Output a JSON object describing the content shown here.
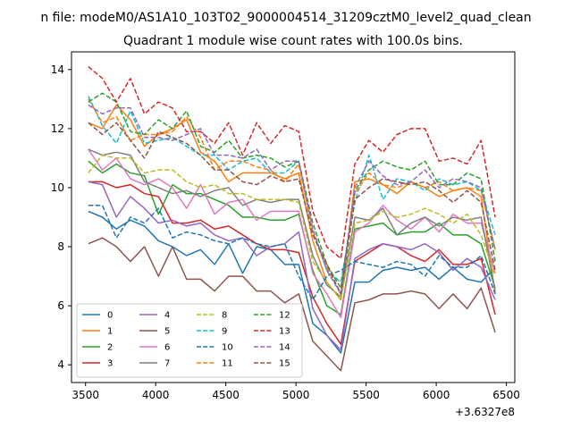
{
  "chart_data": {
    "type": "line",
    "suptitle": "n file: modeM0/AS1A10_103T02_9000004514_31209cztM0_level2_quad_clean",
    "title": "Quadrant 1 module wise count rates with 100.0s bins.",
    "xlabel": "",
    "ylabel": "",
    "x_offset_label": "+3.6327e8",
    "xlim": [
      3400,
      6560
    ],
    "ylim": [
      3.4,
      14.6
    ],
    "xticks": [
      3500,
      4000,
      4500,
      5000,
      5500,
      6000,
      6500
    ],
    "yticks": [
      4,
      6,
      8,
      10,
      12,
      14
    ],
    "x": [
      3520,
      3620,
      3720,
      3820,
      3920,
      4020,
      4120,
      4220,
      4320,
      4420,
      4520,
      4620,
      4720,
      4820,
      4920,
      5020,
      5120,
      5220,
      5320,
      5420,
      5520,
      5620,
      5720,
      5820,
      5920,
      6020,
      6120,
      6220,
      6320,
      6420
    ],
    "grid": false,
    "legend_position": "lower-left",
    "series": [
      {
        "name": "0",
        "color": "#1f77b4",
        "dash": "solid",
        "values": [
          9.2,
          9.0,
          8.6,
          8.9,
          8.7,
          8.2,
          8.0,
          7.7,
          7.9,
          7.4,
          8.1,
          7.1,
          8.0,
          7.9,
          7.4,
          7.4,
          5.4,
          5.0,
          4.4,
          6.8,
          6.8,
          7.2,
          7.3,
          7.2,
          7.3,
          6.9,
          7.3,
          6.9,
          6.8,
          7.3
        ]
      },
      {
        "name": "1",
        "color": "#ff7f0e",
        "dash": "solid",
        "values": [
          12.2,
          12.0,
          12.8,
          12.3,
          11.4,
          11.8,
          12.0,
          12.3,
          11.2,
          10.9,
          10.2,
          10.5,
          10.5,
          10.5,
          10.3,
          10.5,
          8.2,
          6.8,
          6.2,
          10.2,
          10.3,
          10.1,
          9.8,
          10.2,
          10.0,
          9.7,
          9.9,
          10.0,
          9.7,
          6.4
        ]
      },
      {
        "name": "2",
        "color": "#2ca02c",
        "dash": "solid",
        "values": [
          10.9,
          10.5,
          10.8,
          10.5,
          10.4,
          9.1,
          10.1,
          9.8,
          9.8,
          9.6,
          9.4,
          9.0,
          9.0,
          8.9,
          8.9,
          9.1,
          7.2,
          6.0,
          5.7,
          8.6,
          8.7,
          8.8,
          8.4,
          8.5,
          8.5,
          8.8,
          8.4,
          8.4,
          8.1,
          6.6
        ]
      },
      {
        "name": "3",
        "color": "#d62728",
        "dash": "solid",
        "values": [
          10.2,
          10.2,
          10.0,
          10.1,
          9.8,
          9.7,
          8.8,
          8.8,
          8.9,
          8.6,
          8.7,
          8.4,
          8.1,
          7.9,
          7.9,
          7.8,
          6.3,
          5.4,
          4.7,
          7.5,
          7.8,
          8.1,
          8.0,
          7.7,
          7.5,
          7.9,
          7.4,
          7.4,
          7.6,
          5.7
        ]
      },
      {
        "name": "4",
        "color": "#9467bd",
        "dash": "solid",
        "values": [
          10.2,
          10.1,
          9.0,
          9.7,
          9.3,
          8.8,
          8.9,
          8.7,
          8.8,
          8.4,
          8.2,
          8.3,
          7.7,
          8.0,
          8.1,
          8.5,
          5.9,
          5.0,
          4.5,
          7.6,
          7.9,
          8.1,
          8.0,
          7.9,
          8.1,
          7.8,
          7.2,
          7.6,
          7.3,
          6.2
        ]
      },
      {
        "name": "5",
        "color": "#8c564b",
        "dash": "solid",
        "values": [
          8.1,
          8.3,
          8.0,
          7.5,
          8.0,
          7.0,
          8.0,
          6.9,
          6.9,
          6.5,
          7.0,
          7.0,
          6.5,
          6.5,
          6.1,
          6.4,
          4.8,
          4.3,
          3.8,
          6.1,
          6.2,
          6.4,
          6.4,
          6.5,
          6.4,
          5.9,
          6.4,
          5.9,
          6.6,
          5.1
        ]
      },
      {
        "name": "6",
        "color": "#e377c2",
        "dash": "solid",
        "values": [
          11.3,
          10.6,
          11.0,
          10.3,
          10.1,
          10.3,
          10.0,
          9.3,
          10.1,
          9.1,
          9.5,
          9.6,
          8.9,
          9.2,
          9.2,
          9.2,
          7.1,
          6.4,
          5.6,
          8.5,
          8.8,
          9.4,
          8.9,
          8.6,
          9.0,
          8.5,
          9.1,
          8.8,
          8.8,
          7.1
        ]
      },
      {
        "name": "7",
        "color": "#7f7f7f",
        "dash": "solid",
        "values": [
          11.3,
          11.1,
          11.2,
          11.1,
          10.2,
          10.0,
          9.8,
          9.9,
          9.7,
          9.9,
          10.0,
          9.4,
          9.6,
          9.5,
          9.6,
          9.6,
          7.7,
          6.7,
          6.3,
          9.0,
          8.9,
          9.3,
          8.4,
          8.8,
          9.0,
          8.7,
          9.0,
          8.9,
          9.0,
          6.5
        ]
      },
      {
        "name": "8",
        "color": "#bcbd22",
        "dash": "dashed",
        "values": [
          10.5,
          11.1,
          11.0,
          11.0,
          10.5,
          10.6,
          10.6,
          10.2,
          10.0,
          10.1,
          9.8,
          9.8,
          9.6,
          9.6,
          9.6,
          9.5,
          7.5,
          6.8,
          6.2,
          8.8,
          8.9,
          9.2,
          9.0,
          9.1,
          9.3,
          9.1,
          8.8,
          9.1,
          8.4,
          7.0
        ]
      },
      {
        "name": "9",
        "color": "#17becf",
        "dash": "dashed",
        "values": [
          13.1,
          12.1,
          11.5,
          12.6,
          11.5,
          11.6,
          11.7,
          11.4,
          11.1,
          11.1,
          10.6,
          10.9,
          11.0,
          10.5,
          10.5,
          10.9,
          8.5,
          7.2,
          6.8,
          9.5,
          11.1,
          9.6,
          10.3,
          10.2,
          9.9,
          10.3,
          10.1,
          10.2,
          9.9,
          8.4
        ]
      },
      {
        "name": "10",
        "color": "#1f77b4",
        "dash": "dashed",
        "values": [
          9.4,
          9.4,
          8.3,
          9.0,
          8.8,
          9.3,
          8.3,
          8.5,
          8.4,
          8.2,
          8.1,
          8.3,
          8.1,
          8.0,
          8.1,
          7.0,
          6.2,
          7.0,
          7.2,
          7.5,
          7.4,
          7.3,
          7.5,
          7.4,
          7.0,
          7.7,
          7.3,
          7.3,
          7.7,
          6.4
        ]
      },
      {
        "name": "11",
        "color": "#ff7f0e",
        "dash": "dashed",
        "values": [
          13.0,
          12.2,
          12.4,
          11.6,
          11.8,
          11.8,
          11.9,
          12.4,
          11.7,
          10.6,
          10.9,
          10.9,
          10.7,
          10.6,
          10.2,
          10.8,
          8.5,
          7.3,
          6.4,
          9.8,
          10.5,
          10.1,
          10.0,
          10.2,
          10.0,
          10.2,
          9.9,
          10.0,
          9.9,
          7.9
        ]
      },
      {
        "name": "12",
        "color": "#2ca02c",
        "dash": "dashed",
        "values": [
          12.9,
          13.2,
          12.9,
          11.9,
          11.8,
          12.3,
          12.0,
          12.6,
          11.4,
          11.2,
          11.6,
          11.0,
          11.1,
          11.0,
          10.7,
          10.9,
          8.8,
          7.4,
          6.6,
          9.9,
          10.6,
          10.9,
          10.7,
          10.6,
          10.9,
          10.1,
          10.1,
          10.5,
          10.3,
          7.5
        ]
      },
      {
        "name": "13",
        "color": "#d62728",
        "dash": "dashed",
        "values": [
          14.1,
          13.7,
          12.9,
          13.7,
          12.5,
          12.9,
          12.7,
          11.9,
          11.9,
          11.5,
          12.2,
          11.1,
          12.2,
          11.5,
          12.1,
          11.9,
          9.2,
          8.0,
          7.6,
          10.8,
          11.6,
          11.2,
          11.8,
          12.0,
          12.0,
          10.9,
          11.0,
          10.8,
          11.6,
          9.0
        ]
      },
      {
        "name": "14",
        "color": "#9467bd",
        "dash": "dashed",
        "values": [
          12.8,
          12.5,
          12.7,
          12.7,
          11.7,
          11.7,
          11.6,
          11.8,
          12.0,
          11.1,
          11.1,
          11.0,
          11.3,
          10.6,
          10.9,
          10.9,
          8.6,
          7.2,
          6.4,
          10.0,
          10.9,
          10.4,
          10.1,
          10.2,
          10.6,
          10.0,
          10.3,
          10.2,
          10.0,
          7.9
        ]
      },
      {
        "name": "15",
        "color": "#8c564b",
        "dash": "dashed",
        "values": [
          12.2,
          11.8,
          12.2,
          11.6,
          11.0,
          11.9,
          11.7,
          11.5,
          11.1,
          10.6,
          10.6,
          10.2,
          10.1,
          10.4,
          10.2,
          10.3,
          8.4,
          7.4,
          6.4,
          9.6,
          10.0,
          10.3,
          10.2,
          10.1,
          10.2,
          9.9,
          9.5,
          9.9,
          9.5,
          7.2
        ]
      }
    ]
  }
}
